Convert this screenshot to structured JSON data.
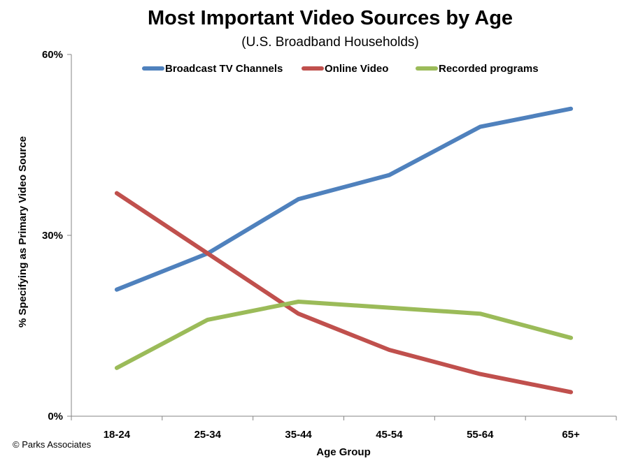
{
  "chart_data": {
    "type": "line",
    "title": "Most Important Video Sources by Age",
    "subtitle": "(U.S. Broadband Households)",
    "xlabel": "Age Group",
    "ylabel": "% Specifying as Primary Video Source",
    "categories": [
      "18-24",
      "25-34",
      "35-44",
      "45-54",
      "55-64",
      "65+"
    ],
    "ylim": [
      0,
      60
    ],
    "yticks": [
      0,
      30,
      60
    ],
    "ytick_labels": [
      "0%",
      "30%",
      "60%"
    ],
    "grid": false,
    "legend_position": "top",
    "series": [
      {
        "name": "Broadcast TV Channels",
        "color": "#4f81bd",
        "values": [
          21,
          27,
          36,
          40,
          48,
          51
        ]
      },
      {
        "name": "Online Video",
        "color": "#c0504d",
        "values": [
          37,
          27,
          17,
          11,
          7,
          4
        ]
      },
      {
        "name": "Recorded programs",
        "color": "#9bbb59",
        "values": [
          8,
          16,
          19,
          18,
          17,
          13
        ]
      }
    ],
    "footer": "© Parks Associates"
  }
}
